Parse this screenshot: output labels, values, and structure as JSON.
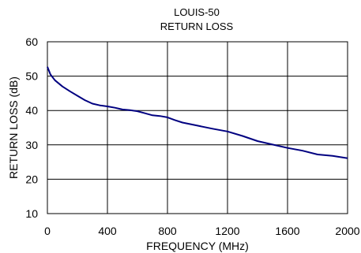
{
  "chart_data": {
    "type": "line",
    "title": [
      "LOUIS-50",
      "RETURN LOSS"
    ],
    "xlabel": "FREQUENCY (MHz)",
    "ylabel": "RETURN LOSS (dB)",
    "xlim": [
      0,
      2000
    ],
    "ylim": [
      10,
      60
    ],
    "xticks": [
      0,
      400,
      800,
      1200,
      1600,
      2000
    ],
    "yticks": [
      10,
      20,
      30,
      40,
      50,
      60
    ],
    "grid": true,
    "series": [
      {
        "color": "#000080",
        "x": [
          0,
          20,
          50,
          100,
          150,
          200,
          250,
          300,
          350,
          400,
          450,
          500,
          550,
          600,
          650,
          700,
          750,
          800,
          850,
          900,
          1000,
          1100,
          1200,
          1300,
          1400,
          1500,
          1600,
          1700,
          1800,
          1900,
          2000
        ],
        "y": [
          52.7,
          50.5,
          48.8,
          47.0,
          45.6,
          44.3,
          43.0,
          42.0,
          41.5,
          41.2,
          40.8,
          40.3,
          40.1,
          39.8,
          39.2,
          38.6,
          38.4,
          38.0,
          37.2,
          36.5,
          35.6,
          34.7,
          33.9,
          32.6,
          31.1,
          30.1,
          29.1,
          28.3,
          27.2,
          26.8,
          26.1
        ]
      }
    ]
  }
}
